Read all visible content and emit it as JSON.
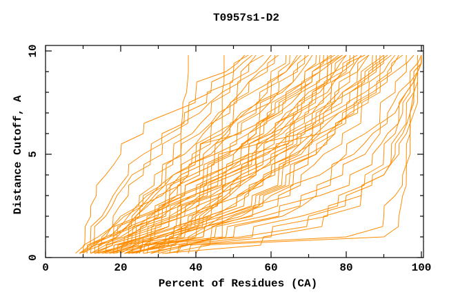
{
  "chart_data": {
    "type": "line",
    "title": "T0957s1-D2",
    "xlabel": "Percent of Residues (CA)",
    "ylabel": "Distance Cutoff, A",
    "xlim": [
      0,
      100.6
    ],
    "ylim": [
      0,
      10.27
    ],
    "x_major_ticks": [
      0,
      20,
      40,
      60,
      80,
      100
    ],
    "x_minor_ticks": [
      10,
      30,
      50,
      70,
      90
    ],
    "y_major_ticks": [
      0,
      5,
      10
    ],
    "y_minor_ticks": [
      1,
      2,
      3,
      4,
      6,
      7,
      8,
      9
    ],
    "grid": false,
    "legend": false,
    "line_color": "#ff8c00",
    "frame_color": "#000000",
    "y_levels": [
      0.2,
      1,
      2,
      3,
      4,
      5,
      6,
      7,
      8,
      9,
      9.8
    ],
    "curves": [
      [
        20,
        36,
        36,
        36,
        36,
        36,
        36,
        36.5,
        37.5,
        38,
        38
      ],
      [
        25,
        47,
        47,
        47,
        47,
        47,
        47,
        47,
        47,
        47.5,
        47.5
      ],
      [
        8,
        10.5,
        12,
        13.5,
        16,
        20,
        26,
        33,
        40,
        48,
        53
      ],
      [
        9,
        13,
        16,
        19,
        23,
        28,
        33,
        38,
        44,
        50,
        54
      ],
      [
        10,
        14,
        18,
        22,
        26,
        31,
        36,
        41,
        47,
        52,
        56
      ],
      [
        11,
        16,
        20,
        25,
        29,
        34,
        39,
        44,
        49,
        54,
        58
      ],
      [
        12,
        17,
        22,
        27,
        32,
        36,
        41,
        46,
        51,
        56,
        60
      ],
      [
        9,
        15,
        21,
        26,
        31,
        37,
        42,
        47,
        52,
        57,
        61
      ],
      [
        13,
        18,
        24,
        29,
        34,
        39,
        44,
        49,
        54,
        59,
        62
      ],
      [
        10,
        16,
        23,
        28,
        34,
        40,
        45,
        50,
        55,
        60,
        64
      ],
      [
        14,
        19,
        25,
        31,
        36,
        41,
        47,
        52,
        57,
        62,
        65
      ],
      [
        15,
        21,
        27,
        33,
        38,
        44,
        49,
        54,
        60,
        64,
        67
      ],
      [
        11,
        17,
        24,
        30,
        36,
        42,
        48,
        53,
        59,
        64,
        68
      ],
      [
        16,
        22,
        29,
        35,
        41,
        41,
        52,
        57,
        62,
        66,
        69
      ],
      [
        12,
        19,
        26,
        33,
        39,
        45,
        51,
        56,
        62,
        67,
        70
      ],
      [
        17,
        24,
        31,
        37,
        43,
        49,
        54,
        60,
        65,
        69,
        72
      ],
      [
        13,
        20,
        28,
        35,
        42,
        48,
        54,
        59,
        64,
        69,
        73
      ],
      [
        18,
        26,
        33,
        40,
        46,
        46,
        57,
        62,
        67,
        71,
        74
      ],
      [
        14,
        22,
        30,
        37,
        44,
        50,
        56,
        61,
        66,
        71,
        75
      ],
      [
        19,
        27,
        35,
        42,
        48,
        54,
        59,
        64,
        69,
        73,
        76
      ],
      [
        15,
        23,
        32,
        39,
        46,
        52,
        58,
        63,
        68,
        73,
        77
      ],
      [
        20,
        29,
        37,
        44,
        44,
        56,
        61,
        66,
        71,
        75,
        78
      ],
      [
        16,
        25,
        34,
        41,
        48,
        54,
        60,
        65,
        70,
        75,
        79
      ],
      [
        21,
        30,
        38,
        46,
        52,
        58,
        63,
        68,
        73,
        77,
        80
      ],
      [
        17,
        26,
        35,
        43,
        50,
        56,
        62,
        67,
        72,
        77,
        81
      ],
      [
        22,
        32,
        40,
        47,
        54,
        54,
        65,
        70,
        75,
        79,
        82
      ],
      [
        18,
        28,
        37,
        45,
        52,
        58,
        64,
        69,
        74,
        79,
        83
      ],
      [
        23,
        33,
        42,
        49,
        56,
        62,
        67,
        72,
        77,
        81,
        84
      ],
      [
        19,
        29,
        39,
        47,
        54,
        60,
        66,
        71,
        76,
        80,
        85
      ],
      [
        24,
        34,
        43,
        51,
        58,
        64,
        69,
        74,
        79,
        83,
        86
      ],
      [
        20,
        31,
        41,
        49,
        56,
        56,
        68,
        74,
        79,
        84,
        87
      ],
      [
        25,
        36,
        45,
        53,
        60,
        66,
        71,
        76,
        81,
        85,
        88
      ],
      [
        21,
        33,
        43,
        51,
        59,
        65,
        71,
        76,
        81,
        86,
        89
      ],
      [
        26,
        38,
        47,
        55,
        62,
        68,
        73,
        78,
        83,
        87,
        90
      ],
      [
        22,
        35,
        45,
        54,
        61,
        61,
        73,
        79,
        84,
        88,
        91
      ],
      [
        28,
        40,
        49,
        57,
        64,
        70,
        75,
        80,
        85,
        89,
        92
      ],
      [
        24,
        37,
        47,
        56,
        63,
        70,
        75,
        81,
        86,
        90,
        93
      ],
      [
        30,
        42,
        52,
        60,
        66,
        72,
        77,
        82,
        87,
        91,
        94
      ],
      [
        26,
        39,
        50,
        58,
        65,
        72,
        77,
        83,
        88,
        92,
        95
      ],
      [
        32,
        44,
        54,
        62,
        68,
        74,
        79,
        84,
        89,
        93,
        96
      ],
      [
        30,
        45,
        58,
        68,
        76,
        82,
        87,
        91,
        94,
        97,
        99
      ],
      [
        33,
        50,
        63,
        72,
        79,
        85,
        89,
        93,
        96,
        98,
        100
      ],
      [
        28,
        48,
        62,
        73,
        81,
        87,
        91,
        94,
        96,
        98,
        100
      ],
      [
        35,
        55,
        68,
        78,
        85,
        90,
        93,
        95,
        97,
        99,
        100
      ],
      [
        25,
        52,
        70,
        80,
        87,
        92,
        94,
        96,
        98,
        99,
        100
      ],
      [
        38,
        60,
        75,
        84,
        90,
        93,
        95,
        97,
        98,
        99,
        100
      ],
      [
        31,
        58,
        74,
        84,
        90,
        94,
        96,
        97,
        98,
        99,
        100
      ],
      [
        40,
        90,
        94,
        95,
        96,
        97,
        97,
        98,
        99,
        99,
        100
      ],
      [
        35,
        80,
        90,
        93,
        95,
        96,
        97,
        97,
        98,
        99,
        100
      ],
      [
        27,
        42,
        55,
        65,
        73,
        80,
        85,
        89,
        93,
        96,
        98
      ],
      [
        23,
        31,
        40,
        48,
        55,
        62,
        68,
        73,
        78,
        83,
        86
      ],
      [
        9,
        12,
        15,
        18,
        22,
        26,
        31,
        37,
        43,
        50,
        55
      ],
      [
        12,
        18,
        25,
        32,
        38,
        45,
        51,
        57,
        63,
        68,
        71
      ],
      [
        14,
        21,
        29,
        36,
        43,
        50,
        56,
        62,
        68,
        73,
        76
      ],
      [
        16,
        24,
        33,
        41,
        48,
        55,
        61,
        67,
        72,
        77,
        80
      ],
      [
        18,
        27,
        36,
        44,
        52,
        59,
        65,
        71,
        76,
        81,
        84
      ],
      [
        21,
        34,
        44,
        52,
        60,
        67,
        72,
        78,
        83,
        87,
        90
      ],
      [
        13,
        22,
        31,
        39,
        47,
        54,
        60,
        66,
        71,
        76,
        79
      ]
    ]
  }
}
